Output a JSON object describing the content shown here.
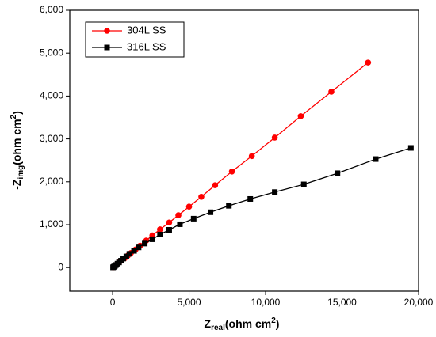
{
  "chart_data": {
    "type": "line",
    "xlabel": [
      "Z",
      "real",
      "(ohm cm",
      "2",
      ")"
    ],
    "ylabel": [
      "-Z",
      "img",
      "(ohm cm",
      "2",
      ")"
    ],
    "xlim": [
      -2800,
      20000
    ],
    "ylim": [
      -550,
      6000
    ],
    "xticks": [
      0,
      {
        "value": 5000,
        "label": "5,000"
      },
      {
        "value": 10000,
        "label": "10,000"
      },
      {
        "value": 15000,
        "label": "15,000"
      },
      {
        "value": 20000,
        "label": "20,000"
      }
    ],
    "yticks": [
      0,
      {
        "value": 1000,
        "label": "1,000"
      },
      {
        "value": 2000,
        "label": "2,000"
      },
      {
        "value": 3000,
        "label": "3,000"
      },
      {
        "value": 4000,
        "label": "4,000"
      },
      {
        "value": 5000,
        "label": "5,000"
      },
      {
        "value": 6000,
        "label": "6,000"
      }
    ],
    "legend": "upper left",
    "series": [
      {
        "name": "304L SS",
        "color": "#ff0000",
        "marker": "circle",
        "x": [
          50,
          80,
          120,
          180,
          250,
          350,
          450,
          600,
          800,
          1000,
          1200,
          1500,
          1800,
          2200,
          2600,
          3100,
          3700,
          4300,
          5000,
          5800,
          6700,
          7800,
          9100,
          10600,
          12300,
          14300,
          16700
        ],
        "values": [
          10,
          20,
          30,
          50,
          70,
          95,
          130,
          170,
          220,
          280,
          340,
          420,
          510,
          630,
          750,
          890,
          1050,
          1220,
          1420,
          1650,
          1920,
          2240,
          2600,
          3030,
          3530,
          4100,
          4780
        ]
      },
      {
        "name": "316L SS",
        "color": "#000000",
        "marker": "square",
        "x": [
          30,
          60,
          100,
          160,
          230,
          320,
          420,
          550,
          700,
          900,
          1100,
          1400,
          1700,
          2100,
          2600,
          3100,
          3700,
          4400,
          5300,
          6400,
          7600,
          9000,
          10600,
          12500,
          14700,
          17200,
          19500
        ],
        "values": [
          5,
          12,
          25,
          40,
          60,
          90,
          120,
          160,
          210,
          260,
          320,
          390,
          470,
          560,
          660,
          770,
          880,
          1010,
          1140,
          1290,
          1440,
          1600,
          1760,
          1940,
          2200,
          2530,
          2790
        ]
      }
    ]
  }
}
